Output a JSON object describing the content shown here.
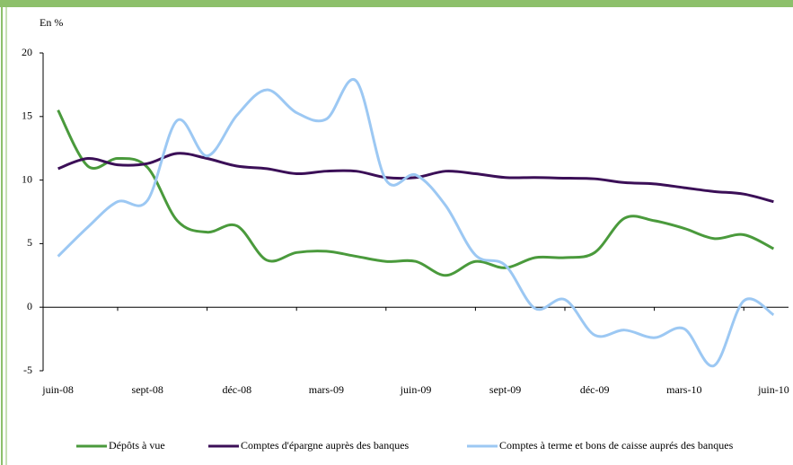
{
  "chart_data": {
    "type": "line",
    "y_label": "En %",
    "categories": [
      "juin-08",
      null,
      null,
      "sept-08",
      null,
      null,
      "déc-08",
      null,
      null,
      "mars-09",
      null,
      null,
      "juin-09",
      null,
      null,
      "sept-09",
      null,
      null,
      "déc-09",
      null,
      null,
      "mars-10",
      null,
      null,
      "juin-10"
    ],
    "series": [
      {
        "name": "Dépôts à vue",
        "color": "#4a9a3c",
        "values": [
          15.5,
          11.1,
          11.7,
          11.0,
          6.8,
          5.9,
          6.4,
          3.7,
          4.3,
          4.4,
          4.0,
          3.6,
          3.6,
          2.5,
          3.6,
          3.1,
          3.9,
          3.9,
          4.3,
          7.0,
          6.8,
          6.2,
          5.4,
          5.7,
          4.6
        ]
      },
      {
        "name": "Comptes d'épargne auprès des banques",
        "color": "#3b0f57",
        "values": [
          10.9,
          11.7,
          11.2,
          11.3,
          12.1,
          11.7,
          11.1,
          10.9,
          10.5,
          10.7,
          10.7,
          10.2,
          10.2,
          10.7,
          10.5,
          10.2,
          10.2,
          10.15,
          10.1,
          9.8,
          9.7,
          9.4,
          9.1,
          8.9,
          8.3
        ]
      },
      {
        "name": "Comptes à terme et bons de caisse auprés des banques",
        "color": "#9cc8f3",
        "values": [
          4.0,
          6.3,
          8.3,
          8.4,
          14.7,
          11.9,
          15.1,
          17.1,
          15.3,
          14.8,
          17.8,
          10.0,
          10.4,
          8.0,
          4.1,
          3.3,
          -0.1,
          0.6,
          -2.2,
          -1.8,
          -2.4,
          -1.7,
          -4.6,
          0.5,
          -0.6
        ]
      }
    ],
    "ylim": [
      -5,
      20
    ],
    "yticks": [
      -5,
      0,
      5,
      10,
      15,
      20
    ],
    "grid": false,
    "legend": "bottom"
  }
}
